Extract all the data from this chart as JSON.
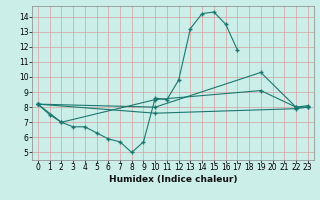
{
  "title": "",
  "xlabel": "Humidex (Indice chaleur)",
  "ylabel": "",
  "bg_color": "#cceee8",
  "line_color": "#1a7870",
  "grid_color": "#d4a0a0",
  "xlim": [
    -0.5,
    23.5
  ],
  "ylim": [
    4.5,
    14.7
  ],
  "xticks": [
    0,
    1,
    2,
    3,
    4,
    5,
    6,
    7,
    8,
    9,
    10,
    11,
    12,
    13,
    14,
    15,
    16,
    17,
    18,
    19,
    20,
    21,
    22,
    23
  ],
  "yticks": [
    5,
    6,
    7,
    8,
    9,
    10,
    11,
    12,
    13,
    14
  ],
  "series_full": [
    {
      "x": [
        0,
        1,
        2,
        3,
        4,
        5,
        6,
        7,
        8,
        9,
        10,
        11,
        12,
        13,
        14,
        15,
        16,
        17
      ],
      "y": [
        8.2,
        7.5,
        7.0,
        6.7,
        6.7,
        6.3,
        5.9,
        5.7,
        5.0,
        5.7,
        8.6,
        8.5,
        9.8,
        13.2,
        14.2,
        14.3,
        13.5,
        11.8
      ]
    },
    {
      "x": [
        0,
        2,
        10,
        19,
        22,
        23
      ],
      "y": [
        8.2,
        7.0,
        8.5,
        9.1,
        8.0,
        8.0
      ]
    },
    {
      "x": [
        0,
        10,
        19,
        22,
        23
      ],
      "y": [
        8.2,
        8.0,
        10.3,
        8.0,
        8.1
      ]
    },
    {
      "x": [
        0,
        10,
        22,
        23
      ],
      "y": [
        8.2,
        7.6,
        7.9,
        8.0
      ]
    }
  ]
}
